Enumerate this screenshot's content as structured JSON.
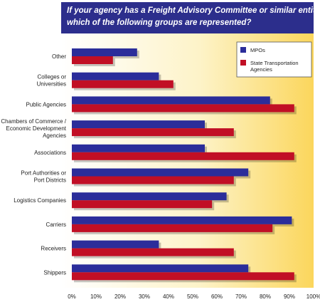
{
  "chart_data": {
    "type": "bar",
    "orientation": "horizontal",
    "title_lines": [
      "If your agency has a Freight Advisory Committee or similar entity,",
      "which of the following groups are represented?"
    ],
    "categories": [
      [
        "Other"
      ],
      [
        "Colleges or",
        "Universities"
      ],
      [
        "Public Agencies"
      ],
      [
        "Chambers of Commerce /",
        "Economic Development",
        "Agencies"
      ],
      [
        "Associations"
      ],
      [
        "Port Authorities or",
        "Port Districts"
      ],
      [
        "Logistics Companies"
      ],
      [
        "Carriers"
      ],
      [
        "Receivers"
      ],
      [
        "Shippers"
      ]
    ],
    "series": [
      {
        "name": "MPOs",
        "color": "#2b2d9a",
        "values": [
          27,
          36,
          82,
          55,
          55,
          73,
          64,
          91,
          36,
          73
        ]
      },
      {
        "name_lines": [
          "State Transportation",
          "Agencies"
        ],
        "color": "#c10f25",
        "values": [
          17,
          42,
          92,
          67,
          92,
          67,
          58,
          83,
          67,
          92
        ]
      }
    ],
    "x_ticks": [
      "0%",
      "10%",
      "20%",
      "30%",
      "40%",
      "50%",
      "60%",
      "70%",
      "80%",
      "90%",
      "100%"
    ],
    "xlim": [
      0,
      100
    ],
    "grid": false,
    "legend": "top-right",
    "background": "gradient-white-to-yellow"
  }
}
